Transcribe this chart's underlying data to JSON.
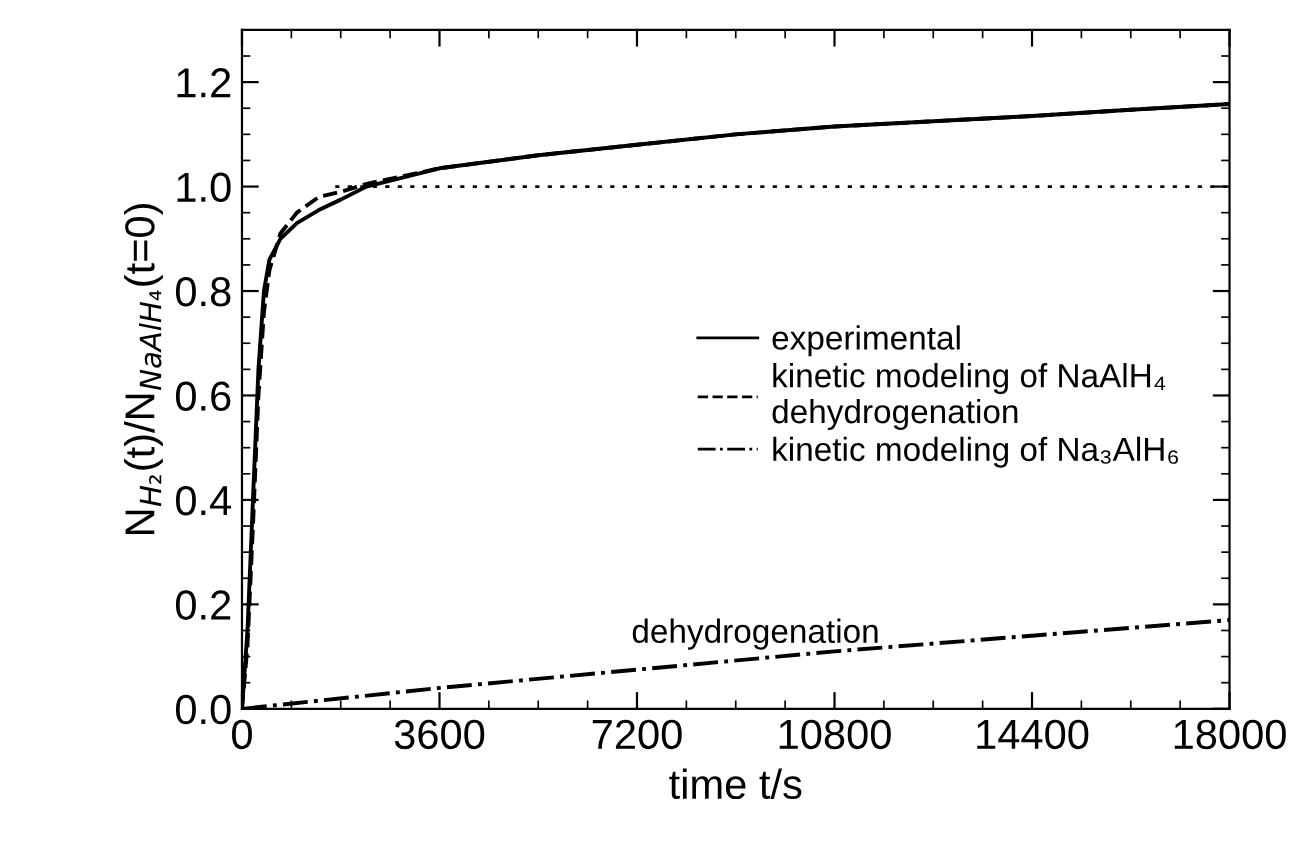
{
  "chart_data": {
    "type": "line",
    "xlabel": "time t/s",
    "ylabel": "N$_{H₂}$(t)/N$_{NaAlH₄}$(t=0)",
    "xlim": [
      0,
      18000
    ],
    "ylim": [
      0,
      1.3
    ],
    "xticks": [
      0,
      3600,
      7200,
      10800,
      14400,
      18000
    ],
    "yticks": [
      {
        "value": 0,
        "label": "0.0"
      },
      0.2,
      0.4,
      0.6,
      0.8,
      {
        "value": 1.0,
        "label": "1.0"
      },
      1.2
    ],
    "grid": false,
    "legend": "right",
    "marker": "none",
    "series": [
      {
        "name": "experimental",
        "color": "#000000",
        "line_style": "solid",
        "x": [
          0,
          100,
          200,
          300,
          400,
          500,
          700,
          1000,
          1400,
          1800,
          2270,
          3600,
          5400,
          7200,
          9000,
          10800,
          12600,
          14400,
          16200,
          18000
        ],
        "values": [
          0,
          0.15,
          0.4,
          0.65,
          0.8,
          0.86,
          0.9,
          0.93,
          0.955,
          0.975,
          1.0,
          1.035,
          1.06,
          1.08,
          1.1,
          1.115,
          1.125,
          1.135,
          1.147,
          1.158
        ]
      },
      {
        "name": "kinetic modeling of NaAlH₄\ndehydrogenation",
        "color": "#000000",
        "line_style": "dashed",
        "x": [
          0,
          100,
          200,
          300,
          400,
          500,
          700,
          1000,
          1400,
          1800,
          2270,
          3600,
          5400,
          7200,
          9000,
          10800,
          12600,
          14400,
          16200,
          18000
        ],
        "values": [
          0,
          0.12,
          0.35,
          0.6,
          0.76,
          0.84,
          0.91,
          0.95,
          0.98,
          0.99,
          1.005,
          1.035,
          1.06,
          1.08,
          1.1,
          1.115,
          1.125,
          1.135,
          1.147,
          1.158
        ]
      },
      {
        "name": "kinetic modeling of Na₃AlH₆",
        "color": "#000000",
        "line_style": "dashdot",
        "x": [
          0,
          3600,
          7200,
          10800,
          14400,
          18000
        ],
        "values": [
          0,
          0.04,
          0.075,
          0.11,
          0.14,
          0.17
        ]
      },
      {
        "color": "#000000",
        "line_style": "dotted",
        "x": [
          1700,
          18000
        ],
        "values": [
          1.0,
          1.0
        ]
      }
    ],
    "annotations": [
      "dehydrogenation"
    ]
  }
}
